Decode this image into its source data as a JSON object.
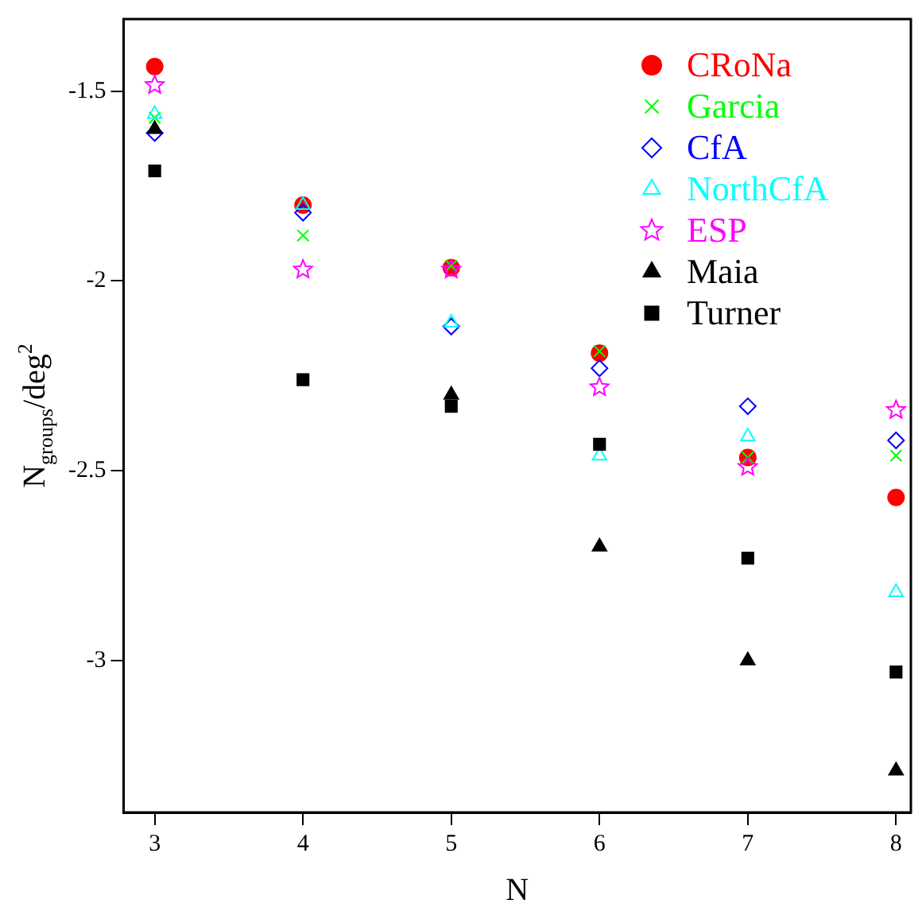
{
  "chart_data": {
    "type": "scatter",
    "xlabel": "N",
    "ylabel": "N$_{groups}$/deg$^{2}$",
    "x": [
      3,
      4,
      5,
      6,
      7,
      8
    ],
    "xlim": [
      2.79,
      8.1
    ],
    "xticks": [
      3,
      4,
      5,
      6,
      7,
      8
    ],
    "ylim": [
      -3.4,
      -1.31
    ],
    "yticks": [
      -1.5,
      -2,
      -2.5,
      -3
    ],
    "grid": false,
    "legend": "top right",
    "series": [
      {
        "name": "CRoNa",
        "color": "#ff0000",
        "marker": "circle",
        "values": [
          -1.435,
          -1.8,
          -1.965,
          -2.19,
          -2.465,
          -2.57
        ]
      },
      {
        "name": "Garcia",
        "color": "#00ff00",
        "marker": "cross",
        "values": [
          -1.57,
          -1.88,
          -1.96,
          -2.185,
          -2.465,
          -2.46
        ]
      },
      {
        "name": "CfA",
        "color": "#0000ff",
        "marker": "diamond",
        "values": [
          -1.61,
          -1.82,
          -2.12,
          -2.23,
          -2.33,
          -2.42
        ]
      },
      {
        "name": "NorthCfA",
        "color": "#00ffff",
        "marker": "triangle",
        "values": [
          -1.56,
          -1.8,
          -2.11,
          -2.46,
          -2.41,
          -2.82
        ]
      },
      {
        "name": "ESP",
        "color": "#ff00ff",
        "marker": "star",
        "values": [
          -1.484,
          -1.97,
          -1.97,
          -2.28,
          -2.49,
          -2.34
        ]
      },
      {
        "name": "Maia",
        "color": "#000000",
        "marker": "triangle",
        "values": [
          -1.6,
          null,
          -2.3,
          -2.7,
          -3.0,
          -3.29
        ]
      },
      {
        "name": "Turner",
        "color": "#000000",
        "marker": "square",
        "values": [
          -1.71,
          -2.26,
          -2.33,
          -2.43,
          -2.73,
          -3.03
        ]
      }
    ]
  }
}
